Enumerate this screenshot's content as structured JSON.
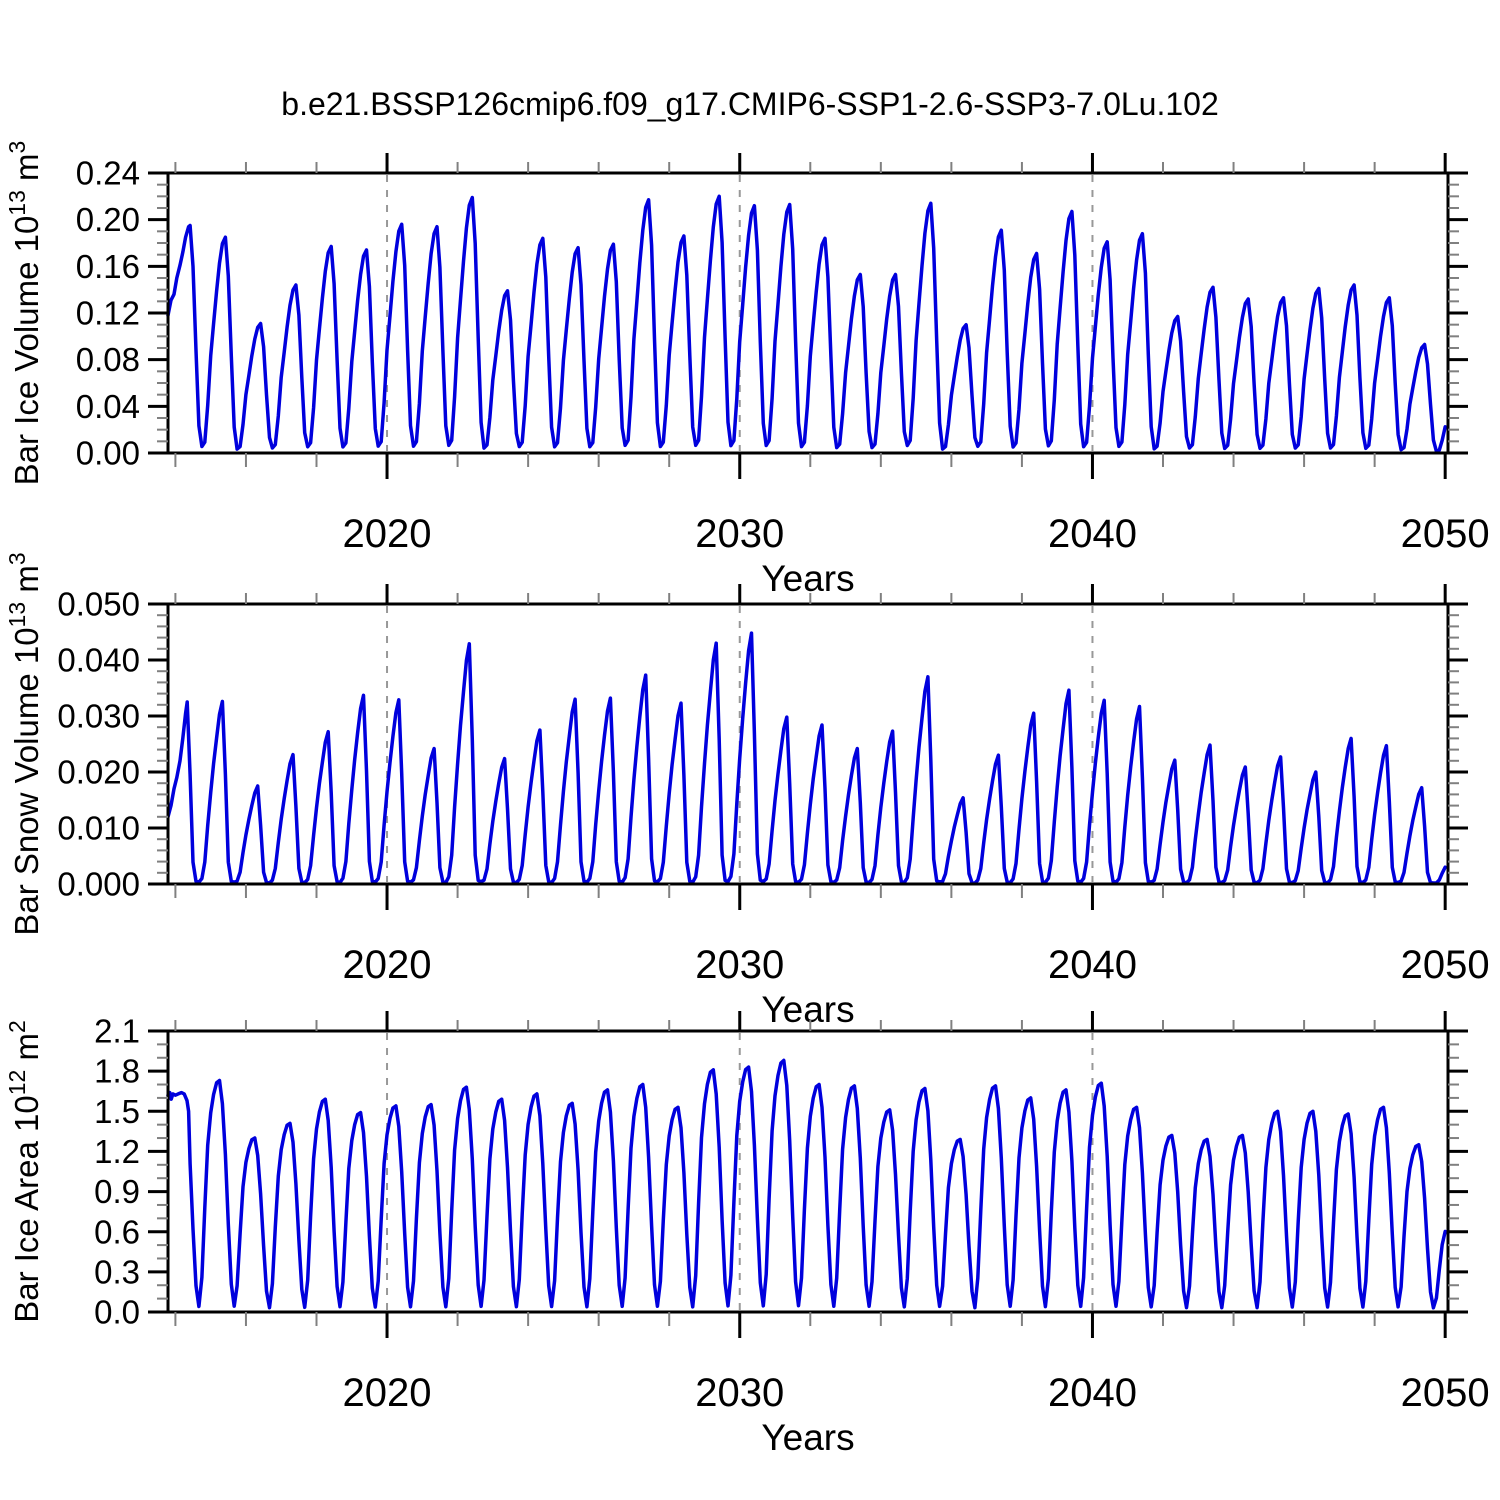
{
  "title": "b.e21.BSSP126cmip6.f09_g17.CMIP6-SSP1-2.6-SSP3-7.0Lu.102",
  "axes": {
    "xlabel": "Years",
    "xlim": [
      2013.79,
      2050.08
    ],
    "xticks": [
      2020,
      2030,
      2040,
      2050
    ],
    "xminor_ticks": [
      2014,
      2016,
      2018,
      2022,
      2024,
      2026,
      2028,
      2032,
      2034,
      2036,
      2038,
      2042,
      2044,
      2046,
      2048
    ],
    "vlines": [
      2020,
      2030,
      2040
    ],
    "vline_color": "#989898"
  },
  "panels": [
    {
      "name": "bar-ice-volume",
      "ylabel_parts": [
        {
          "t": "Bar Ice Volume 10"
        },
        {
          "s": "13"
        },
        {
          "t": " m"
        },
        {
          "s": "3"
        }
      ],
      "ylim": [
        0,
        0.24
      ],
      "ytick_values": [
        0,
        0.04,
        0.08,
        0.12,
        0.16,
        0.2,
        0.24
      ],
      "ytick_labels": [
        "0.00",
        "0.04",
        "0.08",
        "0.12",
        "0.16",
        "0.20",
        "0.24"
      ],
      "yminor_step": 0.01
    },
    {
      "name": "bar-snow-volume",
      "ylabel_parts": [
        {
          "t": "Bar Snow Volume 10"
        },
        {
          "s": "13"
        },
        {
          "t": " m"
        },
        {
          "s": "3"
        }
      ],
      "ylim": [
        0,
        0.05
      ],
      "ytick_values": [
        0,
        0.01,
        0.02,
        0.03,
        0.04,
        0.05
      ],
      "ytick_labels": [
        "0.000",
        "0.010",
        "0.020",
        "0.030",
        "0.040",
        "0.050"
      ],
      "yminor_step": 0.002
    },
    {
      "name": "bar-ice-area",
      "ylabel_parts": [
        {
          "t": "Bar Ice Area 10"
        },
        {
          "s": "12"
        },
        {
          "t": " m"
        },
        {
          "s": "2"
        }
      ],
      "ylim": [
        0,
        2.1
      ],
      "ytick_values": [
        0,
        0.3,
        0.6,
        0.9,
        1.2,
        1.5,
        1.8,
        2.1
      ],
      "ytick_labels": [
        "0.0",
        "0.3",
        "0.6",
        "0.9",
        "1.2",
        "1.5",
        "1.8",
        "2.1"
      ],
      "yminor_step": 0.1
    }
  ],
  "chart_data": {
    "type": "line",
    "line_color": "#0000dd",
    "x_unit": "year (monthly mean seasonal cycle)",
    "start_year": 2014,
    "years": [
      2014,
      2015,
      2016,
      2017,
      2018,
      2019,
      2020,
      2021,
      2022,
      2023,
      2024,
      2025,
      2026,
      2027,
      2028,
      2029,
      2030,
      2031,
      2032,
      2033,
      2034,
      2035,
      2036,
      2037,
      2038,
      2039,
      2040,
      2041,
      2042,
      2043,
      2044,
      2045,
      2046,
      2047,
      2048,
      2049,
      2050
    ],
    "series": [
      {
        "name": "Bar Ice Volume",
        "units": "10^13 m^3",
        "annual_peaks": [
          0.195,
          0.185,
          0.111,
          0.144,
          0.177,
          0.174,
          0.196,
          0.194,
          0.219,
          0.139,
          0.184,
          0.176,
          0.179,
          0.217,
          0.186,
          0.22,
          0.212,
          0.213,
          0.184,
          0.153,
          0.153,
          0.214,
          0.11,
          0.191,
          0.171,
          0.207,
          0.181,
          0.188,
          0.117,
          0.142,
          0.132,
          0.133,
          0.141,
          0.144,
          0.133,
          0.093,
          0.05
        ],
        "monthly_shape": [
          0.45,
          0.6,
          0.75,
          0.88,
          0.97,
          1.0,
          0.82,
          0.45,
          0.12,
          0.03,
          0.05,
          0.22
        ],
        "lead_in": [
          [
            2013.79,
            0.118
          ],
          [
            2013.875,
            0.131
          ],
          [
            2013.96,
            0.136
          ],
          [
            2014.04,
            0.15
          ],
          [
            2014.13,
            0.161
          ],
          [
            2014.21,
            0.172
          ],
          [
            2014.29,
            0.185
          ],
          [
            2014.375,
            0.194
          ]
        ],
        "gen_start_month": 5
      },
      {
        "name": "Bar Snow Volume",
        "units": "10^13 m^3",
        "annual_peaks": [
          0.0325,
          0.0326,
          0.0175,
          0.0231,
          0.0272,
          0.0337,
          0.0329,
          0.0242,
          0.0429,
          0.0224,
          0.0275,
          0.033,
          0.0332,
          0.0373,
          0.0323,
          0.043,
          0.0448,
          0.0298,
          0.0284,
          0.0242,
          0.0273,
          0.037,
          0.0154,
          0.023,
          0.0305,
          0.0346,
          0.0328,
          0.0317,
          0.0221,
          0.0248,
          0.0209,
          0.0227,
          0.02,
          0.026,
          0.0247,
          0.0172,
          0.006
        ],
        "monthly_shape": [
          0.5,
          0.66,
          0.8,
          0.93,
          1.0,
          0.6,
          0.12,
          0.015,
          0.01,
          0.03,
          0.12,
          0.32
        ],
        "lead_in": [
          [
            2013.79,
            0.012
          ],
          [
            2013.875,
            0.014
          ],
          [
            2013.96,
            0.017
          ],
          [
            2014.04,
            0.019
          ],
          [
            2014.13,
            0.022
          ],
          [
            2014.21,
            0.026
          ],
          [
            2014.29,
            0.0305
          ]
        ],
        "gen_start_month": 4
      },
      {
        "name": "Bar Ice Area",
        "units": "10^12 m^2",
        "annual_peaks": [
          1.63,
          1.73,
          1.3,
          1.41,
          1.59,
          1.49,
          1.54,
          1.55,
          1.68,
          1.59,
          1.63,
          1.56,
          1.66,
          1.7,
          1.53,
          1.81,
          1.83,
          1.88,
          1.7,
          1.69,
          1.51,
          1.67,
          1.29,
          1.69,
          1.6,
          1.66,
          1.71,
          1.53,
          1.32,
          1.29,
          1.32,
          1.5,
          1.5,
          1.48,
          1.53,
          1.25,
          0.7
        ],
        "monthly_shape": [
          0.86,
          0.94,
          0.99,
          1.0,
          0.9,
          0.68,
          0.38,
          0.12,
          0.025,
          0.15,
          0.45,
          0.72
        ],
        "lead_in": [
          [
            2013.79,
            1.62
          ],
          [
            2013.84,
            1.64
          ],
          [
            2013.88,
            1.59
          ],
          [
            2013.93,
            1.63
          ],
          [
            2014.0,
            1.62
          ],
          [
            2014.08,
            1.63
          ],
          [
            2014.17,
            1.64
          ],
          [
            2014.25,
            1.63
          ],
          [
            2014.33,
            1.58
          ],
          [
            2014.375,
            1.5
          ]
        ],
        "gen_start_month": 5
      }
    ]
  }
}
